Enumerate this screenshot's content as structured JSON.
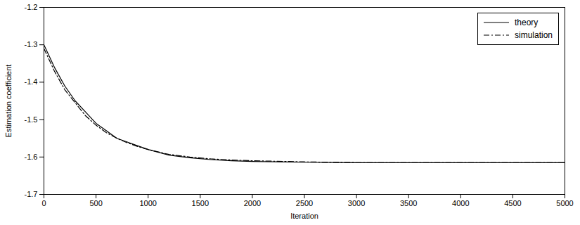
{
  "chart_data": {
    "type": "line",
    "x_label": "Iteration",
    "y_label": "Estimation coefficient",
    "x": [
      0,
      100,
      200,
      300,
      400,
      500,
      600,
      700,
      800,
      900,
      1000,
      1200,
      1400,
      1600,
      1800,
      2000,
      2500,
      3000,
      3500,
      4000,
      4500,
      5000
    ],
    "series": [
      {
        "name": "theory",
        "color": "#000000",
        "line_style": "solid",
        "values": [
          -1.3,
          -1.36,
          -1.41,
          -1.45,
          -1.48,
          -1.51,
          -1.53,
          -1.55,
          -1.56,
          -1.57,
          -1.58,
          -1.595,
          -1.602,
          -1.607,
          -1.61,
          -1.612,
          -1.614,
          -1.615,
          -1.615,
          -1.615,
          -1.615,
          -1.615
        ]
      },
      {
        "name": "simulation",
        "color": "#000000",
        "line_style": "dashdot",
        "values": [
          -1.31,
          -1.37,
          -1.42,
          -1.455,
          -1.49,
          -1.515,
          -1.535,
          -1.55,
          -1.562,
          -1.572,
          -1.58,
          -1.593,
          -1.6,
          -1.605,
          -1.608,
          -1.61,
          -1.613,
          -1.615,
          -1.615,
          -1.615,
          -1.615,
          -1.615
        ]
      }
    ],
    "xlim": [
      0,
      5000
    ],
    "xticks": [
      0,
      500,
      1000,
      1500,
      2000,
      2500,
      3000,
      3500,
      4000,
      4500,
      5000
    ],
    "ylim": [
      -1.7,
      -1.2
    ],
    "yticks": [
      -1.7,
      -1.6,
      -1.5,
      -1.4,
      -1.3,
      -1.2
    ],
    "grid": false,
    "legend": "upper right"
  }
}
